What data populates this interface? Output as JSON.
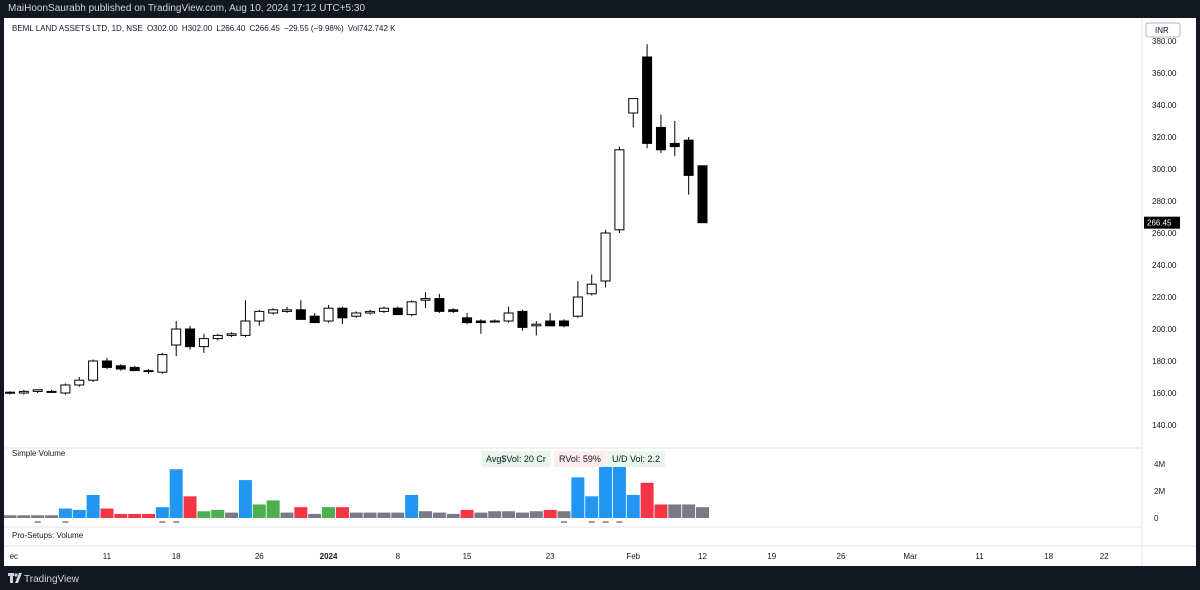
{
  "header": {
    "publish_text": "MaiHoonSaurabh published on TradingView.com, Aug 10, 2024 17:12 UTC+5:30"
  },
  "legend": {
    "symbol": "BEML LAND ASSETS LTD, 1D, NSE",
    "open": "O302.00",
    "high": "H302.00",
    "low": "L266.40",
    "close": "C266.45",
    "change": "−29.55 (−9.98%)",
    "volume": "Vol742.742 K"
  },
  "volume_title": "Simple Volume",
  "pro_title": "Pro-Setups: Volume",
  "stats": {
    "avg_value": "Avg$Vol: 20 Cr",
    "rvol": "RVol: 59%",
    "ud_vol": "U/D Vol: 2.2"
  },
  "footer": {
    "brand": "TradingView"
  },
  "colors": {
    "up": "#ffffff",
    "down": "#000000",
    "vol_blue": "#2196f3",
    "vol_red": "#f23645",
    "vol_green": "#4caf50",
    "vol_gray": "#787b86"
  },
  "chart_data": {
    "type": "candlestick",
    "currency_label": "INR",
    "last_price_label": "266.45",
    "ylim": [
      130,
      390
    ],
    "y_ticks": [
      "140.00",
      "160.00",
      "180.00",
      "200.00",
      "220.00",
      "240.00",
      "260.00",
      "280.00",
      "300.00",
      "320.00",
      "340.00",
      "360.00",
      "380.00"
    ],
    "x_ticks": [
      "ec",
      "11",
      "18",
      "26",
      "2024",
      "8",
      "15",
      "23",
      "Feb",
      "12",
      "19",
      "26",
      "Mar",
      "11",
      "18",
      "22"
    ],
    "candles": [
      {
        "o": 160,
        "h": 161,
        "l": 159,
        "c": 160.5
      },
      {
        "o": 160,
        "h": 162,
        "l": 159,
        "c": 161
      },
      {
        "o": 161,
        "h": 162,
        "l": 160,
        "c": 162
      },
      {
        "o": 161,
        "h": 162,
        "l": 160,
        "c": 160.5
      },
      {
        "o": 160,
        "h": 166,
        "l": 159,
        "c": 165
      },
      {
        "o": 165,
        "h": 170,
        "l": 164,
        "c": 168
      },
      {
        "o": 168,
        "h": 181,
        "l": 167,
        "c": 180
      },
      {
        "o": 180,
        "h": 182,
        "l": 175,
        "c": 176
      },
      {
        "o": 177,
        "h": 178,
        "l": 174,
        "c": 175
      },
      {
        "o": 176,
        "h": 177,
        "l": 174,
        "c": 174
      },
      {
        "o": 174,
        "h": 175,
        "l": 172,
        "c": 174
      },
      {
        "o": 173,
        "h": 185,
        "l": 172,
        "c": 184
      },
      {
        "o": 190,
        "h": 205,
        "l": 183,
        "c": 200
      },
      {
        "o": 200,
        "h": 202,
        "l": 187,
        "c": 189
      },
      {
        "o": 189,
        "h": 197,
        "l": 185,
        "c": 194
      },
      {
        "o": 194,
        "h": 197,
        "l": 193,
        "c": 196
      },
      {
        "o": 196,
        "h": 198,
        "l": 195,
        "c": 197
      },
      {
        "o": 196,
        "h": 218,
        "l": 195,
        "c": 205
      },
      {
        "o": 205,
        "h": 212,
        "l": 202,
        "c": 211
      },
      {
        "o": 210,
        "h": 213,
        "l": 209,
        "c": 212
      },
      {
        "o": 211,
        "h": 214,
        "l": 210,
        "c": 212
      },
      {
        "o": 212,
        "h": 218,
        "l": 206,
        "c": 206
      },
      {
        "o": 208,
        "h": 210,
        "l": 204,
        "c": 204
      },
      {
        "o": 205,
        "h": 215,
        "l": 204,
        "c": 213
      },
      {
        "o": 213,
        "h": 214,
        "l": 203,
        "c": 207
      },
      {
        "o": 208,
        "h": 211,
        "l": 207,
        "c": 210
      },
      {
        "o": 210,
        "h": 212,
        "l": 209,
        "c": 211
      },
      {
        "o": 211,
        "h": 214,
        "l": 210,
        "c": 213
      },
      {
        "o": 213,
        "h": 214,
        "l": 209,
        "c": 209
      },
      {
        "o": 209,
        "h": 218,
        "l": 208,
        "c": 217
      },
      {
        "o": 218,
        "h": 223,
        "l": 213,
        "c": 219
      },
      {
        "o": 219,
        "h": 222,
        "l": 210,
        "c": 211
      },
      {
        "o": 212,
        "h": 213,
        "l": 210,
        "c": 211
      },
      {
        "o": 207,
        "h": 210,
        "l": 203,
        "c": 204
      },
      {
        "o": 205,
        "h": 206,
        "l": 197,
        "c": 204
      },
      {
        "o": 205,
        "h": 206,
        "l": 204,
        "c": 205
      },
      {
        "o": 205,
        "h": 214,
        "l": 204,
        "c": 210
      },
      {
        "o": 211,
        "h": 212,
        "l": 199,
        "c": 201
      },
      {
        "o": 202,
        "h": 205,
        "l": 196,
        "c": 203
      },
      {
        "o": 205,
        "h": 210,
        "l": 202,
        "c": 202
      },
      {
        "o": 205,
        "h": 206,
        "l": 201,
        "c": 202
      },
      {
        "o": 208,
        "h": 230,
        "l": 207,
        "c": 220
      },
      {
        "o": 222,
        "h": 234,
        "l": 221,
        "c": 228
      },
      {
        "o": 230,
        "h": 262,
        "l": 226,
        "c": 260
      },
      {
        "o": 262,
        "h": 314,
        "l": 260,
        "c": 312
      },
      {
        "o": 335,
        "h": 344,
        "l": 326,
        "c": 344
      },
      {
        "o": 370,
        "h": 378,
        "l": 313,
        "c": 316
      },
      {
        "o": 326,
        "h": 334,
        "l": 310,
        "c": 312
      },
      {
        "o": 316,
        "h": 330,
        "l": 308,
        "c": 314
      },
      {
        "o": 318,
        "h": 320,
        "l": 284,
        "c": 296
      },
      {
        "o": 302,
        "h": 302,
        "l": 266.4,
        "c": 266.45
      }
    ],
    "volume_axis": {
      "ylim": [
        0,
        4.8
      ],
      "ticks": [
        "0",
        "2M",
        "4M"
      ]
    },
    "volume": [
      {
        "v": 0.2,
        "c": "gray"
      },
      {
        "v": 0.2,
        "c": "gray"
      },
      {
        "v": 0.2,
        "c": "gray"
      },
      {
        "v": 0.2,
        "c": "gray"
      },
      {
        "v": 0.7,
        "c": "blue"
      },
      {
        "v": 0.6,
        "c": "blue"
      },
      {
        "v": 1.7,
        "c": "blue"
      },
      {
        "v": 0.7,
        "c": "red"
      },
      {
        "v": 0.3,
        "c": "red"
      },
      {
        "v": 0.3,
        "c": "red"
      },
      {
        "v": 0.3,
        "c": "red"
      },
      {
        "v": 0.8,
        "c": "blue"
      },
      {
        "v": 3.6,
        "c": "blue"
      },
      {
        "v": 1.6,
        "c": "red"
      },
      {
        "v": 0.5,
        "c": "green"
      },
      {
        "v": 0.6,
        "c": "green"
      },
      {
        "v": 0.4,
        "c": "gray"
      },
      {
        "v": 2.8,
        "c": "blue"
      },
      {
        "v": 1.0,
        "c": "green"
      },
      {
        "v": 1.3,
        "c": "green"
      },
      {
        "v": 0.4,
        "c": "gray"
      },
      {
        "v": 0.8,
        "c": "red"
      },
      {
        "v": 0.3,
        "c": "gray"
      },
      {
        "v": 0.8,
        "c": "green"
      },
      {
        "v": 0.8,
        "c": "red"
      },
      {
        "v": 0.4,
        "c": "gray"
      },
      {
        "v": 0.4,
        "c": "gray"
      },
      {
        "v": 0.4,
        "c": "gray"
      },
      {
        "v": 0.4,
        "c": "gray"
      },
      {
        "v": 1.7,
        "c": "blue"
      },
      {
        "v": 0.5,
        "c": "gray"
      },
      {
        "v": 0.4,
        "c": "gray"
      },
      {
        "v": 0.3,
        "c": "gray"
      },
      {
        "v": 0.6,
        "c": "red"
      },
      {
        "v": 0.4,
        "c": "gray"
      },
      {
        "v": 0.5,
        "c": "gray"
      },
      {
        "v": 0.5,
        "c": "gray"
      },
      {
        "v": 0.4,
        "c": "gray"
      },
      {
        "v": 0.5,
        "c": "gray"
      },
      {
        "v": 0.6,
        "c": "red"
      },
      {
        "v": 0.5,
        "c": "gray"
      },
      {
        "v": 3.0,
        "c": "blue"
      },
      {
        "v": 1.6,
        "c": "blue"
      },
      {
        "v": 3.8,
        "c": "blue"
      },
      {
        "v": 4.8,
        "c": "blue"
      },
      {
        "v": 1.7,
        "c": "blue"
      },
      {
        "v": 2.6,
        "c": "red"
      },
      {
        "v": 1.0,
        "c": "red"
      },
      {
        "v": 1.0,
        "c": "gray"
      },
      {
        "v": 1.0,
        "c": "gray"
      },
      {
        "v": 0.8,
        "c": "gray"
      }
    ],
    "pro_setup_marks": [
      2,
      4,
      11,
      12,
      40,
      42,
      43,
      44
    ]
  }
}
